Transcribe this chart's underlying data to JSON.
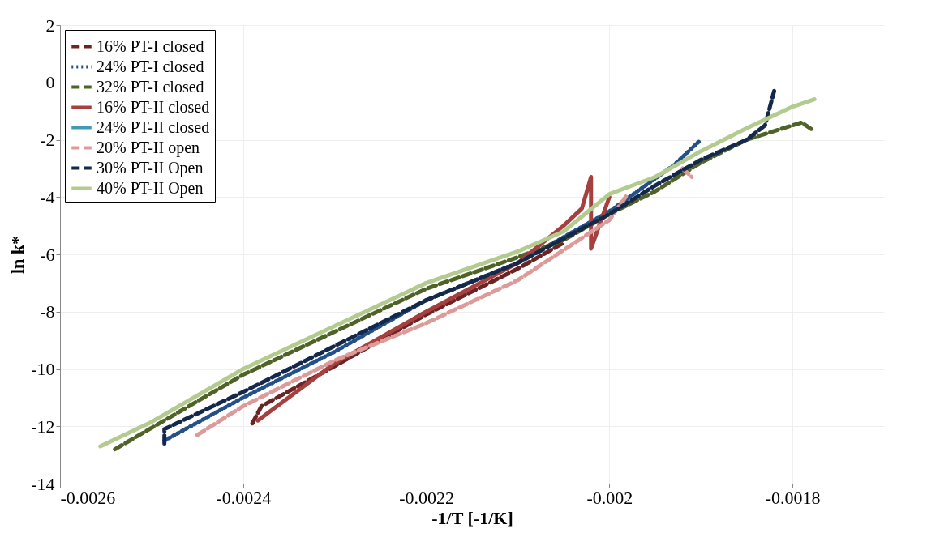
{
  "chart_data": {
    "type": "line",
    "xlabel": "-1/T [-1/K]",
    "ylabel": "ln k*",
    "xlim": [
      -0.0026,
      -0.0017
    ],
    "xticks": [
      -0.0026,
      -0.0024,
      -0.0022,
      -0.002,
      -0.0018
    ],
    "ylim": [
      -14,
      2
    ],
    "yticks": [
      -14,
      -12,
      -10,
      -8,
      -6,
      -4,
      -2,
      0,
      2
    ],
    "grid": true,
    "legend": "top left",
    "marker": "none",
    "series": [
      {
        "name": "16% PT-I closed",
        "color": "#6b2424",
        "line_style": "dashed",
        "x": [
          -0.00239,
          -0.00238,
          -0.0023,
          -0.0022,
          -0.0021,
          -0.00205
        ],
        "values": [
          -11.9,
          -11.3,
          -9.9,
          -8.1,
          -6.5,
          -5.6
        ]
      },
      {
        "name": "24% PT-I closed",
        "color": "#24508a",
        "line_style": "dotted",
        "x": [
          -0.002486,
          -0.0024,
          -0.0023,
          -0.0022,
          -0.0021,
          -0.002,
          -0.00193,
          -0.0019
        ],
        "values": [
          -12.5,
          -11.0,
          -9.4,
          -7.6,
          -6.3,
          -4.5,
          -2.9,
          -2.0
        ]
      },
      {
        "name": "32% PT-I closed",
        "color": "#4f6228",
        "line_style": "dashed",
        "x": [
          -0.00254,
          -0.0024,
          -0.0023,
          -0.0022,
          -0.0021,
          -0.00205,
          -0.002,
          -0.00195,
          -0.0019,
          -0.00185,
          -0.0018,
          -0.00179,
          -0.001776
        ],
        "values": [
          -12.8,
          -10.2,
          -8.7,
          -7.2,
          -6.1,
          -5.5,
          -4.6,
          -3.8,
          -2.8,
          -2.0,
          -1.5,
          -1.4,
          -1.7
        ]
      },
      {
        "name": "16% PT-II closed",
        "color": "#a5403e",
        "line_style": "solid",
        "x": [
          -0.002384,
          -0.0023,
          -0.0022,
          -0.0021,
          -0.00205,
          -0.00203,
          -0.00202,
          -0.00202,
          -0.002
        ],
        "values": [
          -11.8,
          -9.8,
          -8.0,
          -6.3,
          -5.0,
          -4.4,
          -3.3,
          -5.8,
          -4.0
        ]
      },
      {
        "name": "24% PT-II closed",
        "color": "#4299b3",
        "line_style": "solid"
      },
      {
        "name": "20% PT-II open",
        "color": "#dc9a98",
        "line_style": "dashed",
        "x": [
          -0.00245,
          -0.0024,
          -0.0023,
          -0.0022,
          -0.0021,
          -0.002,
          -0.00198,
          -0.00195,
          -0.00192,
          -0.00191
        ],
        "values": [
          -12.3,
          -11.3,
          -9.7,
          -8.4,
          -6.9,
          -4.8,
          -3.9,
          null,
          -3.0,
          -3.3
        ]
      },
      {
        "name": "30% PT-II Open",
        "color": "#14284b",
        "line_style": "dashed",
        "x": [
          -0.002486,
          -0.002486,
          -0.0024,
          -0.0023,
          -0.0022,
          -0.0021,
          -0.002,
          -0.00195,
          -0.0019,
          -0.00185,
          -0.00183,
          -0.00182
        ],
        "values": [
          -12.6,
          -12.1,
          -10.8,
          -9.2,
          -7.6,
          -6.3,
          -4.6,
          -3.6,
          -2.7,
          -2.0,
          -1.5,
          -0.3
        ]
      },
      {
        "name": "40% PT-II Open",
        "color": "#b3cb8f",
        "line_style": "solid",
        "x": [
          -0.002556,
          -0.0025,
          -0.0024,
          -0.0023,
          -0.0022,
          -0.0021,
          -0.00205,
          -0.002,
          -0.00195,
          -0.0019,
          -0.00185,
          -0.0018,
          -0.001776
        ],
        "values": [
          -12.7,
          -11.85,
          -10.0,
          -8.5,
          -7.0,
          -5.9,
          -5.2,
          -3.9,
          -3.3,
          -2.4,
          -1.6,
          -0.85,
          -0.59
        ]
      }
    ]
  }
}
